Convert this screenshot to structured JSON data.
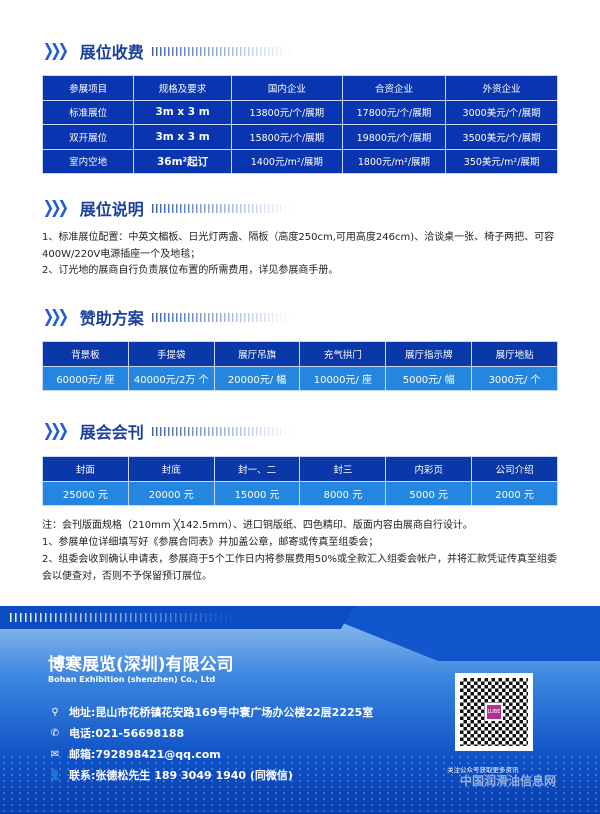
{
  "sections": {
    "fees": "展位收费",
    "notes": "展位说明",
    "sponsor": "赞助方案",
    "journal": "展会会刊"
  },
  "fees_table": {
    "headers": [
      "参展项目",
      "规格及要求",
      "国内企业",
      "合资企业",
      "外资企业"
    ],
    "rows": [
      [
        "标准展位",
        "3m x 3  m",
        "13800元/个/展期",
        "17800元/个/展期",
        "3000美元/个/展期"
      ],
      [
        "双开展位",
        "3m x 3  m",
        "15800元/个/展期",
        "19800元/个/展期",
        "3500美元/个/展期"
      ],
      [
        "室内空地",
        "36m²起订",
        "1400元/m²/展期",
        "1800元/m²/展期",
        "350美元/m²/展期"
      ]
    ]
  },
  "booth_notes": [
    "1、标准展位配置：中英文楣板、日光灯两盏、隔板（高度250cm,可用高度246cm)、洽谈桌一张、椅子两把、可容400W/220V电源插座一个及地毯；",
    "2、订光地的展商自行负责展位布置的所需费用，详见参展商手册。"
  ],
  "sponsor_table": {
    "headers": [
      "背景板",
      "手提袋",
      "展厅吊旗",
      "充气拱门",
      "展厅指示牌",
      "展厅地贴"
    ],
    "values": [
      "60000元/ 座",
      "40000元/2万 个",
      "20000元/ 幅",
      "10000元/ 座",
      "5000元/ 幅",
      "3000元/ 个"
    ]
  },
  "journal_table": {
    "headers": [
      "封面",
      "封底",
      "封一、二",
      "封三",
      "内彩页",
      "公司介绍"
    ],
    "values": [
      "25000 元",
      "20000 元",
      "15000 元",
      "8000 元",
      "5000 元",
      "2000 元"
    ]
  },
  "journal_notes": [
    "注：会刊版面规格（210mm ╳142.5mm）、进口铜版纸、四色精印、版面内容由展商自行设计。",
    "1、参展单位详细填写好《参展合同表》并加盖公章，邮寄或传真至组委会；",
    "2、组委会收到确认申请表，参展商于5个工作日内将参展费用50%或全款汇入组委会帐户，并将汇款凭证传真至组委会以便查对，否则不予保留预订展位。"
  ],
  "footer": {
    "company": "博寒展览(深圳)有限公司",
    "company_en": "Bohan Exhibition (shenzhen) Co., Ltd",
    "address": "地址:昆山市花桥镇花安路169号中寰广场办公楼22层2225室",
    "phone": "电话:021-56698188",
    "email": "邮箱:792898421@qq.com",
    "contact": "联系:张德松先生 189 3049 1940 (同微信)",
    "qr_caption": "关注公众号获取更多资讯",
    "qr_logo": "LUBE",
    "watermark": "中国润滑油信息网"
  },
  "colors": {
    "table_dark": "#0a35b0",
    "table_light": "#2586df",
    "title": "#1b3f9a"
  }
}
